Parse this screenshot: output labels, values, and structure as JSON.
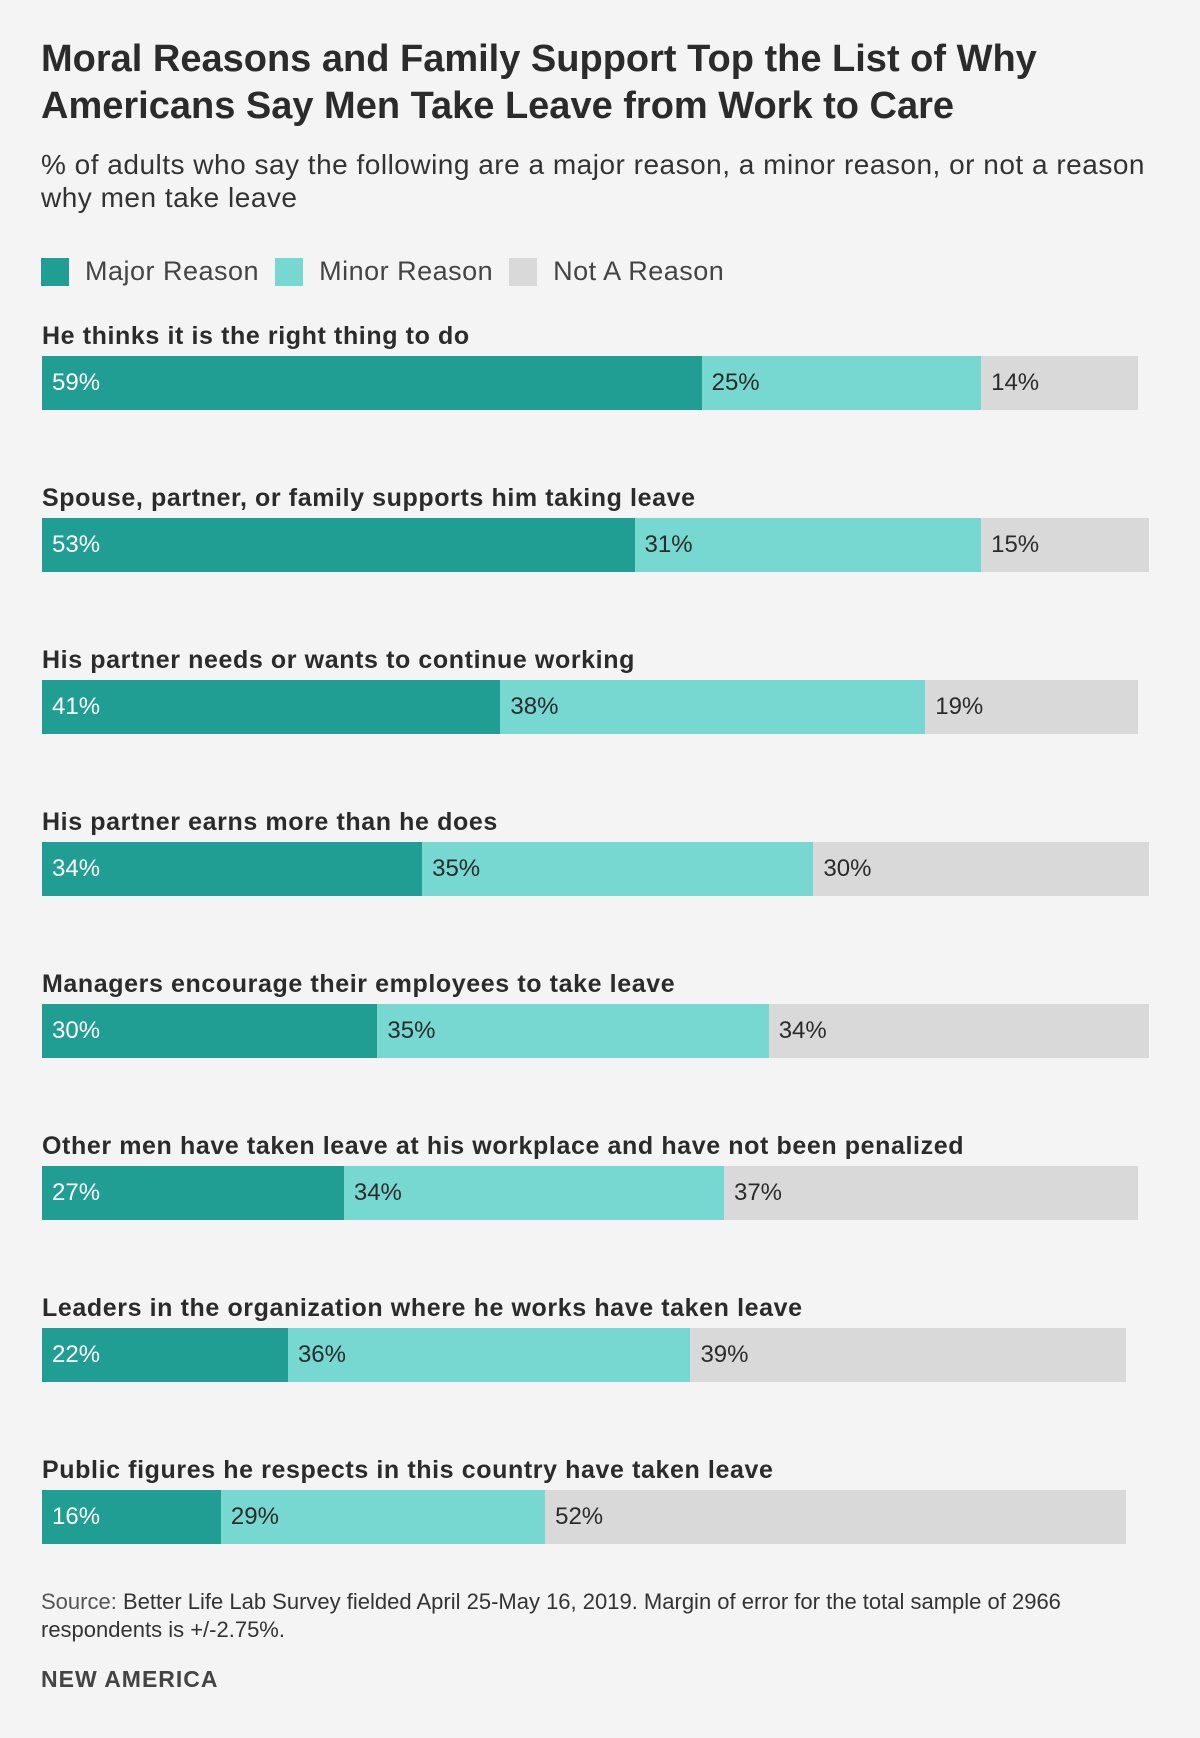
{
  "title": "Moral Reasons and Family Support Top the List of Why Americans Say Men Take Leave from Work to Care",
  "subtitle": "% of adults who say the following are a major reason, a minor reason, or not a reason why men take leave",
  "colors": {
    "major": "#209e94",
    "minor": "#76d8d1",
    "not": "#d9d9d9",
    "major_text": "#ffffff",
    "other_text": "#2b2b2b"
  },
  "chart_data": {
    "type": "bar",
    "orientation": "horizontal",
    "stacked": true,
    "xlim": [
      0,
      100
    ],
    "unit": "%",
    "title": "Moral Reasons and Family Support Top the List of Why Americans Say Men Take Leave from Work to Care",
    "legend_position": "top-left",
    "grid": false,
    "series_names": [
      "Major Reason",
      "Minor Reason",
      "Not A Reason"
    ],
    "rows": [
      {
        "label": "He thinks it is the right thing to do",
        "values": [
          59,
          25,
          14
        ],
        "value_labels": [
          "59%",
          "25%",
          "14%"
        ]
      },
      {
        "label": "Spouse, partner, or family supports him taking leave",
        "values": [
          53,
          31,
          15
        ],
        "value_labels": [
          "53%",
          "31%",
          "15%"
        ]
      },
      {
        "label": "His partner needs or wants to continue working",
        "values": [
          41,
          38,
          19
        ],
        "value_labels": [
          "41%",
          "38%",
          "19%"
        ]
      },
      {
        "label": "His partner earns more than he does",
        "values": [
          34,
          35,
          30
        ],
        "value_labels": [
          "34%",
          "35%",
          "30%"
        ]
      },
      {
        "label": "Managers encourage their employees to take leave",
        "values": [
          30,
          35,
          34
        ],
        "value_labels": [
          "30%",
          "35%",
          "34%"
        ]
      },
      {
        "label": "Other men have taken leave at his workplace and have not been penalized",
        "values": [
          27,
          34,
          37
        ],
        "value_labels": [
          "27%",
          "34%",
          "37%"
        ]
      },
      {
        "label": "Leaders in the organization where he works have taken leave",
        "values": [
          22,
          36,
          39
        ],
        "value_labels": [
          "22%",
          "36%",
          "39%"
        ]
      },
      {
        "label": "Public figures he respects in this country have taken leave",
        "values": [
          16,
          29,
          52
        ],
        "value_labels": [
          "16%",
          "29%",
          "52%"
        ]
      }
    ]
  },
  "source": {
    "prefix": "Source:",
    "text": "Better Life Lab Survey fielded April 25-May 16, 2019. Margin of error for the total sample of 2966 respondents is +/-2.75%."
  },
  "brand": "NEW AMERICA"
}
